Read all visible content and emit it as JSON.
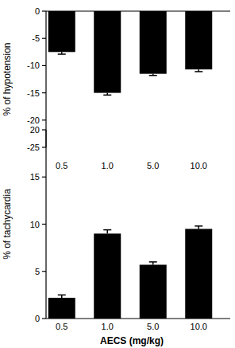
{
  "chart_data": [
    {
      "type": "bar",
      "y_label": "% of hypotension",
      "categories": [
        "0.5",
        "1.0",
        "5.0",
        "10.0"
      ],
      "values": [
        -7.5,
        -15,
        -11.5,
        -10.7
      ],
      "errors": [
        0.4,
        0.4,
        0.3,
        0.4
      ],
      "color": "#000000",
      "ylim": [
        -25,
        0
      ],
      "yticks": [
        0,
        -5,
        -10,
        -15,
        -20,
        -25
      ]
    },
    {
      "type": "bar",
      "x_label": "AECS (mg/kg)",
      "y_label": "% of tachycardia",
      "categories": [
        "0.5",
        "1.0",
        "5.0",
        "10.0"
      ],
      "values": [
        2.2,
        9.0,
        5.7,
        9.5
      ],
      "errors": [
        0.3,
        0.4,
        0.3,
        0.3
      ],
      "color": "#000000",
      "ylim": [
        0,
        20
      ],
      "yticks": [
        0,
        5,
        10,
        15,
        20
      ]
    }
  ]
}
